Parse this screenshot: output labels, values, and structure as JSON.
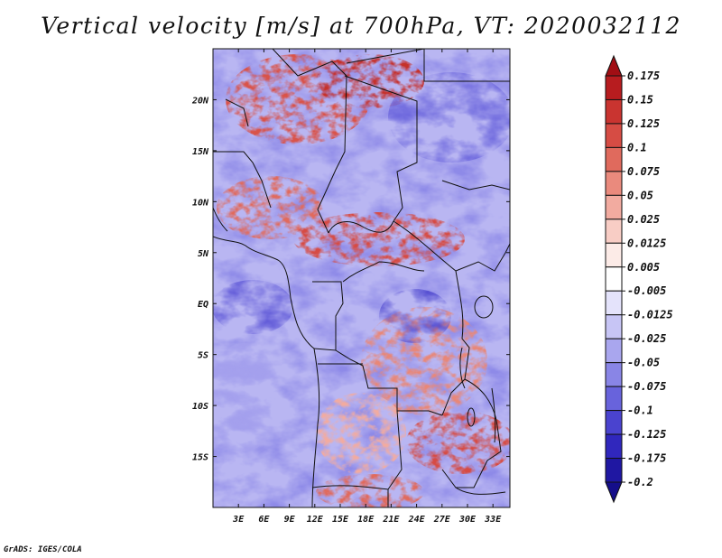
{
  "title": "Vertical velocity [m/s] at 700hPa, VT: 2020032112",
  "credit": "GrADS: IGES/COLA",
  "map": {
    "lon_labels": [
      "3E",
      "6E",
      "9E",
      "12E",
      "15E",
      "18E",
      "21E",
      "24E",
      "27E",
      "30E",
      "33E"
    ],
    "lat_labels": [
      "20N",
      "15N",
      "10N",
      "5N",
      "EQ",
      "5S",
      "10S",
      "15S"
    ],
    "lon_values": [
      3,
      6,
      9,
      12,
      15,
      18,
      21,
      24,
      27,
      30,
      33
    ],
    "lat_values": [
      20,
      15,
      10,
      5,
      0,
      -5,
      -10,
      -15
    ],
    "lon_range": [
      0,
      35
    ],
    "lat_range": [
      -20,
      25
    ]
  },
  "colorbar": {
    "labels": [
      "0.175",
      "0.15",
      "0.125",
      "0.1",
      "0.075",
      "0.05",
      "0.025",
      "0.0125",
      "0.005",
      "-0.005",
      "-0.0125",
      "-0.025",
      "-0.05",
      "-0.075",
      "-0.1",
      "-0.125",
      "-0.175",
      "-0.2"
    ],
    "colors": [
      "#a10e14",
      "#b71c1f",
      "#c93430",
      "#d64c44",
      "#e06a5d",
      "#ea8a7d",
      "#f2aba0",
      "#f8cdc5",
      "#fcebe7",
      "#ffffff",
      "#e4e3fb",
      "#c7c5f5",
      "#a9a6ee",
      "#8985e6",
      "#6863dc",
      "#4a43cf",
      "#3027bd",
      "#1f17a2",
      "#150e8a"
    ]
  }
}
